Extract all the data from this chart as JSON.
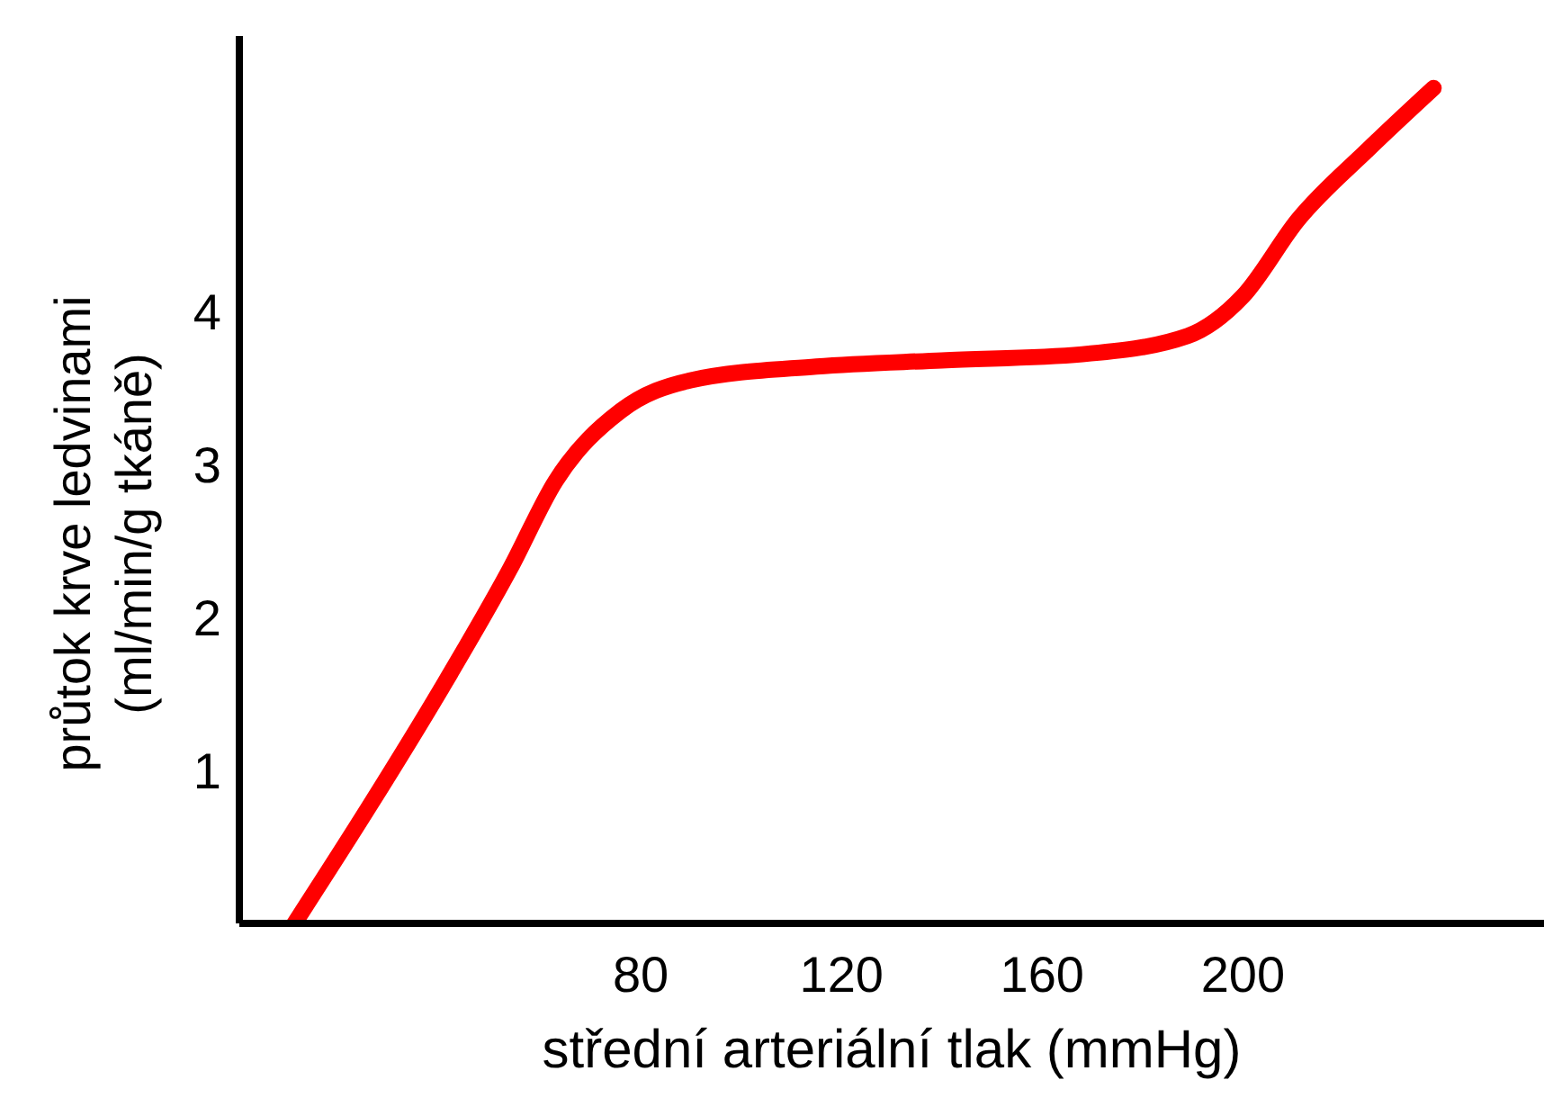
{
  "chart_data": {
    "type": "line",
    "xlabel": "střední arteriální tlak (mmHg)",
    "ylabel": "průtok krve ledvinami\n(ml/min/g tkáně)",
    "xlim": [
      0,
      260
    ],
    "xticks": [
      80,
      120,
      160,
      200
    ],
    "ylim": [
      0,
      5.8
    ],
    "yticks": [
      1,
      2,
      3,
      4
    ],
    "series": [
      {
        "color": "#ff0000",
        "x": [
          11,
          26,
          40,
          54,
          63,
          76,
          90,
          115,
          140,
          168,
          189,
          200,
          211,
          225,
          238
        ],
        "values": [
          0,
          0.77,
          1.52,
          2.32,
          2.89,
          3.35,
          3.55,
          3.64,
          3.68,
          3.72,
          3.84,
          4.1,
          4.6,
          5.06,
          5.46
        ]
      }
    ]
  }
}
